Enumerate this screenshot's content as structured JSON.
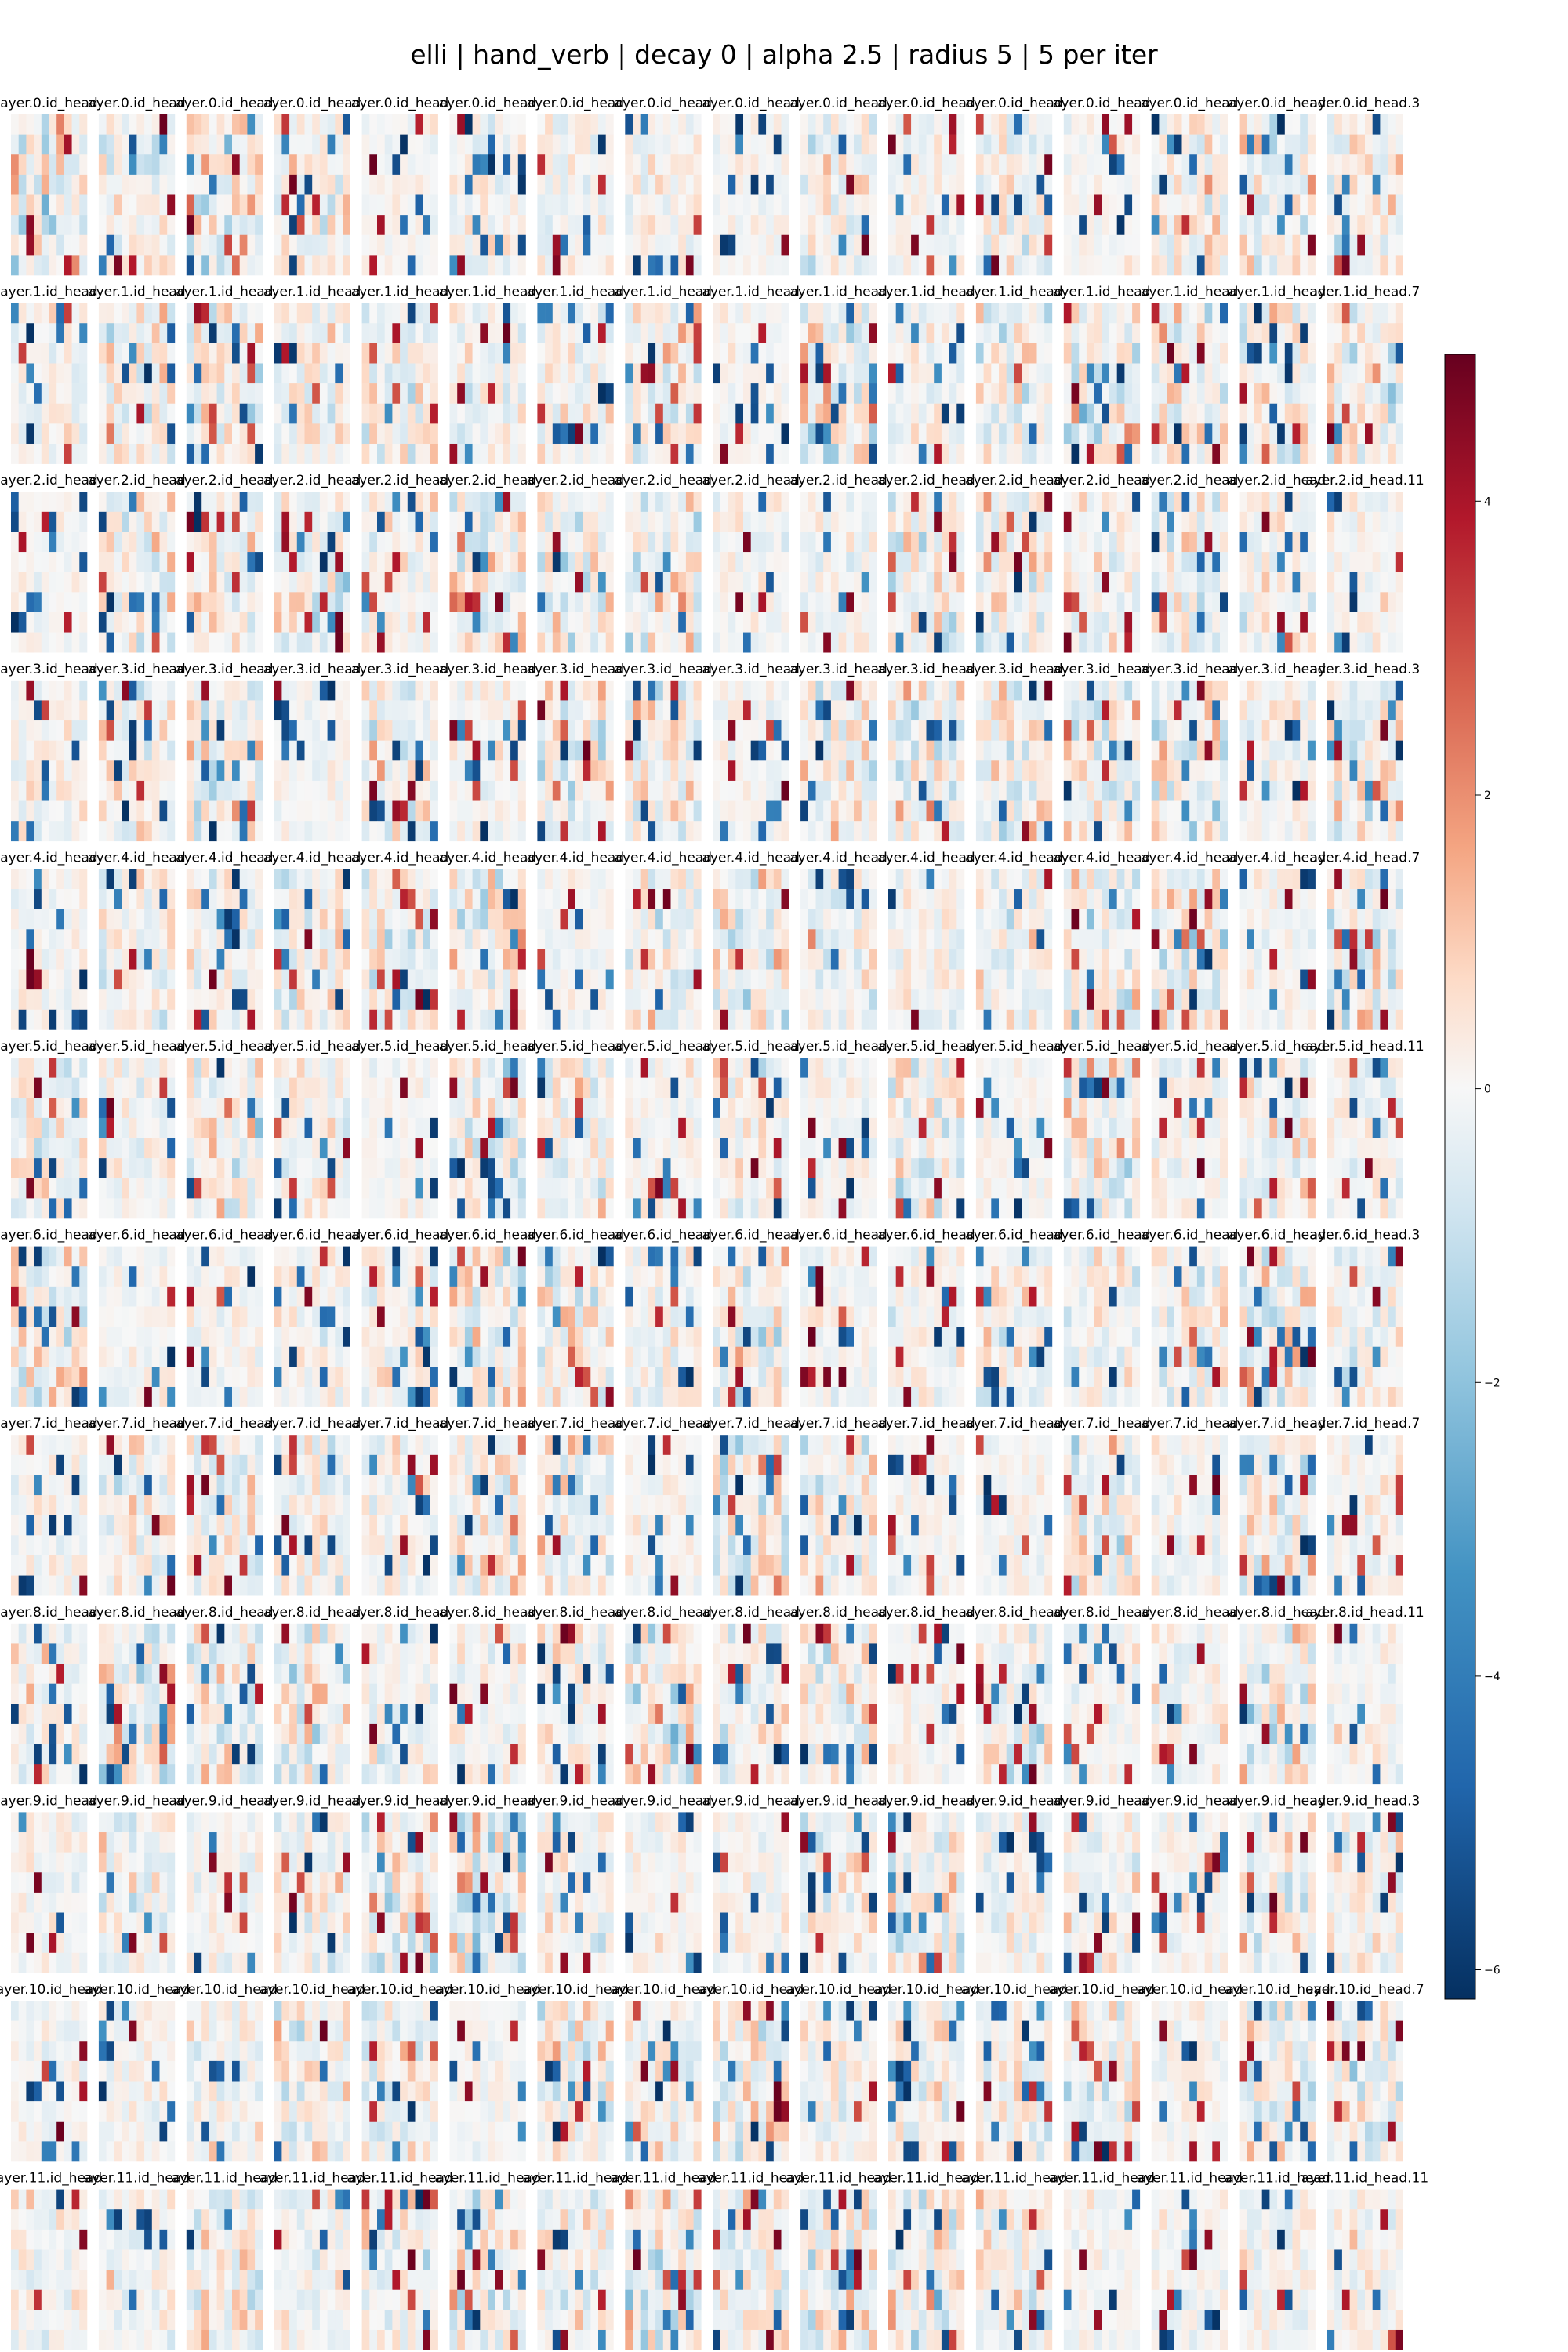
{
  "title": "elli | hand_verb | decay 0 | alpha 2.5 | radius 5 | 5 per iter",
  "chart_data": {
    "type": "heatmap",
    "title": "elli | hand_verb | decay 0 | alpha 2.5 | radius 5 | 5 per iter",
    "colormap": "RdBu_r",
    "colorbar": {
      "range": [
        -6.2,
        5.0
      ],
      "ticks": [
        4,
        2,
        0,
        -2,
        -4,
        -6
      ],
      "tick_labels": [
        "4",
        "2",
        "0",
        "−2",
        "−4",
        "−6"
      ]
    },
    "grid": false,
    "panel_rows": 12,
    "panel_cols": 16,
    "cells_per_panel": [
      10,
      8
    ],
    "panel_titles": [
      [
        "ayer.0.id_head",
        "ayer.0.id_head",
        "ayer.0.id_head",
        "ayer.0.id_head",
        "ayer.0.id_head",
        "ayer.0.id_head",
        "ayer.0.id_head",
        "ayer.0.id_head",
        "ayer.0.id_head",
        "ayer.0.id_head",
        "ayer.0.id_head",
        "ayer.0.id_head",
        "ayer.0.id_head",
        "ayer.0.id_head",
        "ayer.0.id_head",
        "ayer.0.id_head.3"
      ],
      [
        "ayer.1.id_head",
        "ayer.1.id_head",
        "ayer.1.id_head",
        "ayer.1.id_head",
        "ayer.1.id_head",
        "ayer.1.id_head",
        "ayer.1.id_head",
        "ayer.1.id_head",
        "ayer.1.id_head",
        "ayer.1.id_head",
        "ayer.1.id_head",
        "ayer.1.id_head",
        "ayer.1.id_head",
        "ayer.1.id_head",
        "ayer.1.id_head",
        "ayer.1.id_head.7"
      ],
      [
        "ayer.2.id_head",
        "ayer.2.id_head",
        "ayer.2.id_head",
        "ayer.2.id_head",
        "ayer.2.id_head",
        "ayer.2.id_head",
        "ayer.2.id_head",
        "ayer.2.id_head",
        "ayer.2.id_head",
        "ayer.2.id_head",
        "ayer.2.id_head",
        "ayer.2.id_head",
        "ayer.2.id_head",
        "ayer.2.id_head",
        "ayer.2.id_head",
        "ayer.2.id_head.11"
      ],
      [
        "ayer.3.id_head",
        "ayer.3.id_head",
        "ayer.3.id_head",
        "ayer.3.id_head",
        "ayer.3.id_head",
        "ayer.3.id_head",
        "ayer.3.id_head",
        "ayer.3.id_head",
        "ayer.3.id_head",
        "ayer.3.id_head",
        "ayer.3.id_head",
        "ayer.3.id_head",
        "ayer.3.id_head",
        "ayer.3.id_head",
        "ayer.3.id_head",
        "ayer.3.id_head.3"
      ],
      [
        "ayer.4.id_head",
        "ayer.4.id_head",
        "ayer.4.id_head",
        "ayer.4.id_head",
        "ayer.4.id_head",
        "ayer.4.id_head",
        "ayer.4.id_head",
        "ayer.4.id_head",
        "ayer.4.id_head",
        "ayer.4.id_head",
        "ayer.4.id_head",
        "ayer.4.id_head",
        "ayer.4.id_head",
        "ayer.4.id_head",
        "ayer.4.id_head",
        "ayer.4.id_head.7"
      ],
      [
        "ayer.5.id_head",
        "ayer.5.id_head",
        "ayer.5.id_head",
        "ayer.5.id_head",
        "ayer.5.id_head",
        "ayer.5.id_head",
        "ayer.5.id_head",
        "ayer.5.id_head",
        "ayer.5.id_head",
        "ayer.5.id_head",
        "ayer.5.id_head",
        "ayer.5.id_head",
        "ayer.5.id_head",
        "ayer.5.id_head",
        "ayer.5.id_head",
        "ayer.5.id_head.11"
      ],
      [
        "ayer.6.id_head",
        "ayer.6.id_head",
        "ayer.6.id_head",
        "ayer.6.id_head",
        "ayer.6.id_head",
        "ayer.6.id_head",
        "ayer.6.id_head",
        "ayer.6.id_head",
        "ayer.6.id_head",
        "ayer.6.id_head",
        "ayer.6.id_head",
        "ayer.6.id_head",
        "ayer.6.id_head",
        "ayer.6.id_head",
        "ayer.6.id_head",
        "ayer.6.id_head.3"
      ],
      [
        "ayer.7.id_head",
        "ayer.7.id_head",
        "ayer.7.id_head",
        "ayer.7.id_head",
        "ayer.7.id_head",
        "ayer.7.id_head",
        "ayer.7.id_head",
        "ayer.7.id_head",
        "ayer.7.id_head",
        "ayer.7.id_head",
        "ayer.7.id_head",
        "ayer.7.id_head",
        "ayer.7.id_head",
        "ayer.7.id_head",
        "ayer.7.id_head",
        "ayer.7.id_head.7"
      ],
      [
        "ayer.8.id_head",
        "ayer.8.id_head",
        "ayer.8.id_head",
        "ayer.8.id_head",
        "ayer.8.id_head",
        "ayer.8.id_head",
        "ayer.8.id_head",
        "ayer.8.id_head",
        "ayer.8.id_head",
        "ayer.8.id_head",
        "ayer.8.id_head",
        "ayer.8.id_head",
        "ayer.8.id_head",
        "ayer.8.id_head",
        "ayer.8.id_head",
        "ayer.8.id_head.11"
      ],
      [
        "ayer.9.id_head",
        "ayer.9.id_head",
        "ayer.9.id_head",
        "ayer.9.id_head",
        "ayer.9.id_head",
        "ayer.9.id_head",
        "ayer.9.id_head",
        "ayer.9.id_head",
        "ayer.9.id_head",
        "ayer.9.id_head",
        "ayer.9.id_head",
        "ayer.9.id_head",
        "ayer.9.id_head",
        "ayer.9.id_head",
        "ayer.9.id_head",
        "ayer.9.id_head.3"
      ],
      [
        "ayer.10.id_head",
        "ayer.10.id_head",
        "ayer.10.id_head",
        "ayer.10.id_head",
        "ayer.10.id_head",
        "ayer.10.id_head",
        "ayer.10.id_head",
        "ayer.10.id_head",
        "ayer.10.id_head",
        "ayer.10.id_head",
        "ayer.10.id_head",
        "ayer.10.id_head",
        "ayer.10.id_head",
        "ayer.10.id_head",
        "ayer.10.id_head",
        "ayer.10.id_head.7"
      ],
      [
        "ayer.11.id_head",
        "ayer.11.id_head",
        "ayer.11.id_head",
        "ayer.11.id_head",
        "ayer.11.id_head",
        "ayer.11.id_head",
        "ayer.11.id_head",
        "ayer.11.id_head",
        "ayer.11.id_head",
        "ayer.11.id_head",
        "ayer.11.id_head",
        "ayer.11.id_head",
        "ayer.11.id_head",
        "ayer.11.id_head",
        "ayer.11.id_head",
        "ayer.11.id_head.11"
      ]
    ]
  }
}
